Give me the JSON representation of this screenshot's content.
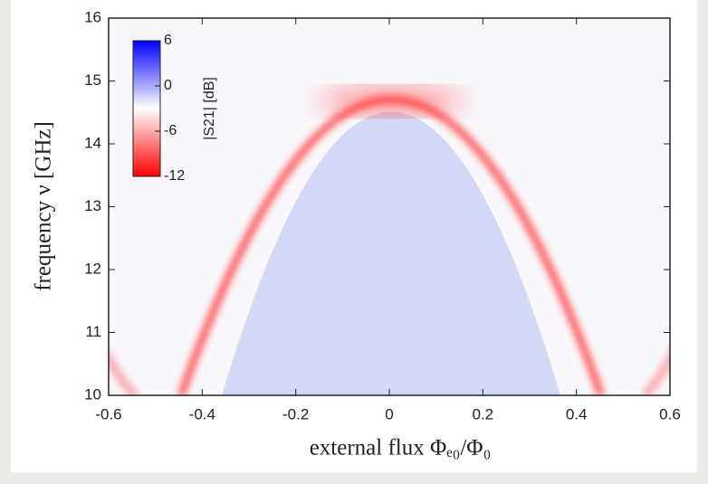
{
  "chart_data": {
    "type": "heatmap",
    "xlabel": "external flux Φₑ₀/Φ₀",
    "ylabel": "frequency ν [GHz]",
    "xlim": [
      -0.6,
      0.6
    ],
    "xticks": [
      -0.6,
      -0.4,
      -0.2,
      0,
      0.2,
      0.4,
      0.6
    ],
    "ylim": [
      10,
      16
    ],
    "yticks": [
      10,
      11,
      12,
      13,
      14,
      15,
      16
    ],
    "colorbar": {
      "label": "|S21| [dB]",
      "lim": [
        -12,
        6
      ],
      "ticks": [
        6,
        0,
        -6,
        -12
      ],
      "colors": [
        "#ff0000",
        "#ffffff",
        "#0000ff"
      ]
    }
  }
}
